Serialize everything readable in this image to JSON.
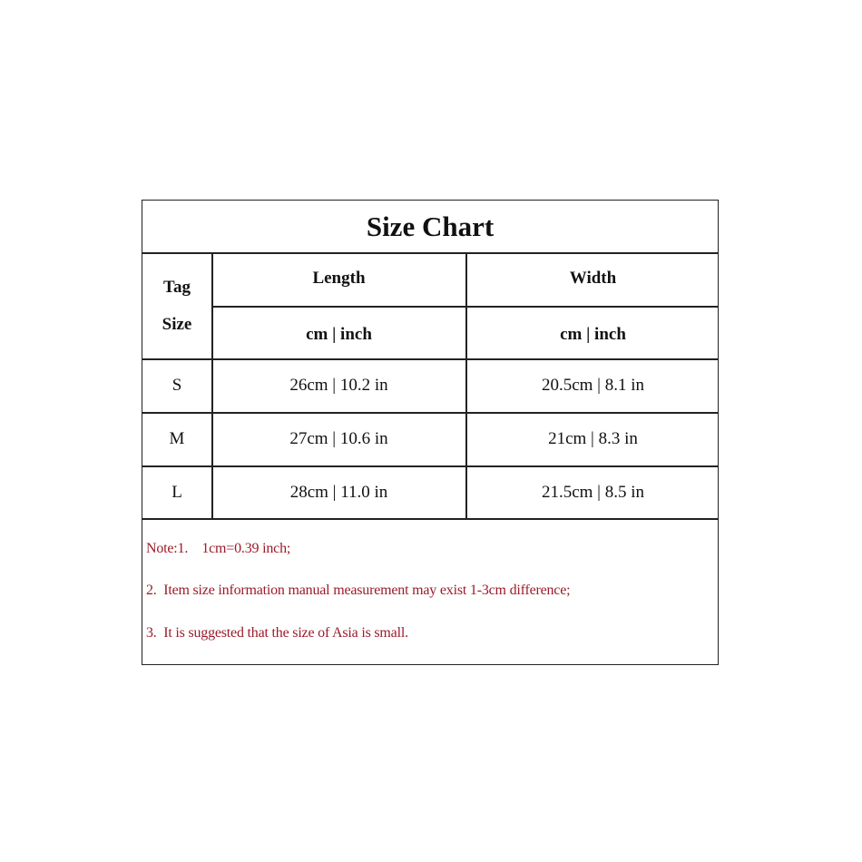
{
  "title": "Size Chart",
  "headers": {
    "tag_line1": "Tag",
    "tag_line2": "Size",
    "length": "Length",
    "width": "Width",
    "length_unit": "cm | inch",
    "width_unit": "cm | inch"
  },
  "rows": [
    {
      "size": "S",
      "length": "26cm | 10.2 in",
      "width": "20.5cm | 8.1 in"
    },
    {
      "size": "M",
      "length": "27cm | 10.6 in",
      "width": "21cm | 8.3 in"
    },
    {
      "size": "L",
      "length": "28cm | 11.0 in",
      "width": "21.5cm | 8.5 in"
    }
  ],
  "notes": [
    "Note:1.    1cm=0.39 inch;",
    "2.  Item size information manual measurement may exist 1-3cm difference;",
    "3.  It is suggested that the size of Asia is small."
  ],
  "colors": {
    "note_text": "#9b1b2a",
    "border": "#222222"
  }
}
